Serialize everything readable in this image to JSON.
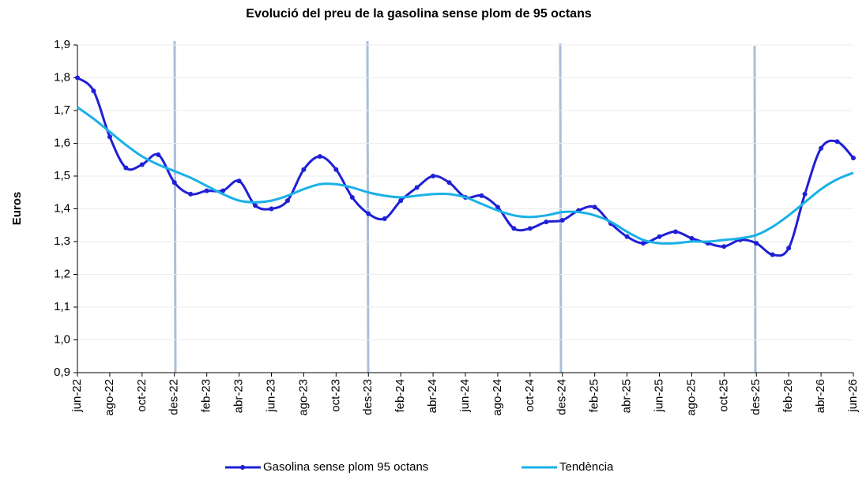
{
  "chart_data": {
    "type": "line",
    "title": "Evolució del preu de la gasolina sense plom de 95 octans",
    "y_label": "Euros",
    "categories": [
      "jun-22",
      null,
      "ago-22",
      null,
      "oct-22",
      null,
      "des-22",
      null,
      "feb-23",
      null,
      "abr-23",
      null,
      "jun-23",
      null,
      "ago-23",
      null,
      "oct-23",
      null,
      "des-23",
      null,
      "feb-24",
      null,
      "abr-24",
      null,
      "jun-24",
      null,
      "ago-24",
      null,
      "oct-24",
      null,
      "des-24",
      null,
      "feb-25",
      null,
      "abr-25",
      null,
      "jun-25",
      null,
      "ago-25",
      null,
      "oct-25",
      null,
      "des-25",
      null,
      "feb-26",
      null,
      "abr-26",
      null,
      "jun-26"
    ],
    "series": [
      {
        "name": "Gasolina sense plom 95 octans",
        "color": "#1f1fd6",
        "markers": true,
        "values": [
          1.8,
          1.76,
          1.62,
          1.525,
          1.535,
          1.565,
          1.48,
          1.445,
          1.455,
          1.455,
          1.485,
          1.41,
          1.4,
          1.425,
          1.52,
          1.56,
          1.52,
          1.435,
          1.385,
          1.37,
          1.425,
          1.465,
          1.5,
          1.48,
          1.435,
          1.44,
          1.405,
          1.34,
          1.34,
          1.36,
          1.365,
          1.395,
          1.405,
          1.355,
          1.315,
          1.295,
          1.315,
          1.33,
          1.31,
          1.295,
          1.285,
          1.305,
          1.295,
          1.26,
          1.28,
          1.445,
          1.585,
          1.605,
          1.555
        ]
      },
      {
        "name": "Tendència",
        "color": "#1ab0e8",
        "markers": false,
        "values": [
          1.71,
          1.675,
          1.635,
          1.595,
          1.56,
          1.535,
          1.515,
          1.495,
          1.47,
          1.445,
          1.425,
          1.42,
          1.425,
          1.44,
          1.46,
          1.475,
          1.475,
          1.465,
          1.45,
          1.44,
          1.435,
          1.44,
          1.445,
          1.445,
          1.435,
          1.415,
          1.395,
          1.38,
          1.375,
          1.38,
          1.39,
          1.39,
          1.38,
          1.36,
          1.33,
          1.305,
          1.295,
          1.295,
          1.3,
          1.3,
          1.305,
          1.31,
          1.32,
          1.345,
          1.38,
          1.42,
          1.46,
          1.49,
          1.51
        ]
      }
    ],
    "ylim": [
      0.9,
      1.9
    ],
    "yticks": [
      {
        "value": 0.9,
        "label": "0,9"
      },
      {
        "value": 1.0,
        "label": "1,0"
      },
      {
        "value": 1.1,
        "label": "1,1"
      },
      {
        "value": 1.2,
        "label": "1,2"
      },
      {
        "value": 1.3,
        "label": "1,3"
      },
      {
        "value": 1.4,
        "label": "1,4"
      },
      {
        "value": 1.5,
        "label": "1,5"
      },
      {
        "value": 1.6,
        "label": "1,6"
      },
      {
        "value": 1.7,
        "label": "1,7"
      },
      {
        "value": 1.8,
        "label": "1,8"
      },
      {
        "value": 1.9,
        "label": "1,9"
      }
    ],
    "grid": true,
    "legend": "bottom"
  }
}
